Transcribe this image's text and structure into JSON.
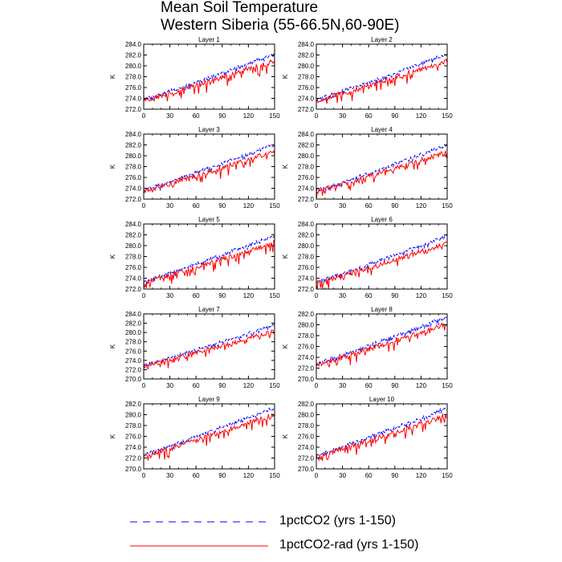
{
  "title": {
    "line1": "Mean Soil Temperature",
    "line2": "Western Siberia (55-66.5N,60-90E)"
  },
  "legend": [
    {
      "label": "1pctCO2 (yrs 1-150)",
      "color": "#0000ff",
      "dash": "dashed"
    },
    {
      "label": "1pctCO2-rad (yrs 1-150)",
      "color": "#ff0000",
      "dash": "solid"
    }
  ],
  "chart_data": [
    {
      "type": "line",
      "title": "Layer 1",
      "ylabel": "K",
      "xlim": [
        0,
        150
      ],
      "ylim": [
        272,
        284
      ],
      "xticks": [
        0,
        30,
        60,
        90,
        120,
        150
      ],
      "yticks": [
        272,
        274,
        276,
        278,
        280,
        282,
        284
      ],
      "ytick_labels": [
        "272.0",
        "274.0",
        "276.0",
        "278.0",
        "280.0",
        "282.0",
        "284.0"
      ],
      "series": [
        {
          "name": "1pctCO2 (yrs 1-150)",
          "start": 273.8,
          "end": 282.2,
          "color": "#0000ff"
        },
        {
          "name": "1pctCO2-rad (yrs 1-150)",
          "start": 273.6,
          "end": 280.9,
          "color": "#ff0000"
        }
      ]
    },
    {
      "type": "line",
      "title": "Layer 2",
      "ylabel": "K",
      "xlim": [
        0,
        150
      ],
      "ylim": [
        272,
        284
      ],
      "xticks": [
        0,
        30,
        60,
        90,
        120,
        150
      ],
      "yticks": [
        272,
        274,
        276,
        278,
        280,
        282,
        284
      ],
      "ytick_labels": [
        "272.0",
        "274.0",
        "276.0",
        "278.0",
        "280.0",
        "282.0",
        "284.0"
      ],
      "series": [
        {
          "name": "1pctCO2 (yrs 1-150)",
          "start": 273.8,
          "end": 282.2,
          "color": "#0000ff"
        },
        {
          "name": "1pctCO2-rad (yrs 1-150)",
          "start": 273.6,
          "end": 280.9,
          "color": "#ff0000"
        }
      ]
    },
    {
      "type": "line",
      "title": "Layer 3",
      "ylabel": "K",
      "xlim": [
        0,
        150
      ],
      "ylim": [
        272,
        284
      ],
      "xticks": [
        0,
        30,
        60,
        90,
        120,
        150
      ],
      "yticks": [
        272,
        274,
        276,
        278,
        280,
        282,
        284
      ],
      "ytick_labels": [
        "272.0",
        "274.0",
        "276.0",
        "278.0",
        "280.0",
        "282.0",
        "284.0"
      ],
      "series": [
        {
          "name": "1pctCO2 (yrs 1-150)",
          "start": 273.7,
          "end": 282.1,
          "color": "#0000ff"
        },
        {
          "name": "1pctCO2-rad (yrs 1-150)",
          "start": 273.5,
          "end": 280.8,
          "color": "#ff0000"
        }
      ]
    },
    {
      "type": "line",
      "title": "Layer 4",
      "ylabel": "K",
      "xlim": [
        0,
        150
      ],
      "ylim": [
        272,
        284
      ],
      "xticks": [
        0,
        30,
        60,
        90,
        120,
        150
      ],
      "yticks": [
        272,
        274,
        276,
        278,
        280,
        282,
        284
      ],
      "ytick_labels": [
        "272.0",
        "274.0",
        "276.0",
        "278.0",
        "280.0",
        "282.0",
        "284.0"
      ],
      "series": [
        {
          "name": "1pctCO2 (yrs 1-150)",
          "start": 273.6,
          "end": 282.0,
          "color": "#0000ff"
        },
        {
          "name": "1pctCO2-rad (yrs 1-150)",
          "start": 273.4,
          "end": 280.7,
          "color": "#ff0000"
        }
      ]
    },
    {
      "type": "line",
      "title": "Layer 5",
      "ylabel": "K",
      "xlim": [
        0,
        150
      ],
      "ylim": [
        272,
        284
      ],
      "xticks": [
        0,
        30,
        60,
        90,
        120,
        150
      ],
      "yticks": [
        272,
        274,
        276,
        278,
        280,
        282,
        284
      ],
      "ytick_labels": [
        "272.0",
        "274.0",
        "276.0",
        "278.0",
        "280.0",
        "282.0",
        "284.0"
      ],
      "series": [
        {
          "name": "1pctCO2 (yrs 1-150)",
          "start": 273.4,
          "end": 281.9,
          "color": "#0000ff"
        },
        {
          "name": "1pctCO2-rad (yrs 1-150)",
          "start": 273.2,
          "end": 280.6,
          "color": "#ff0000"
        }
      ]
    },
    {
      "type": "line",
      "title": "Layer 6",
      "ylabel": "K",
      "xlim": [
        0,
        150
      ],
      "ylim": [
        272,
        284
      ],
      "xticks": [
        0,
        30,
        60,
        90,
        120,
        150
      ],
      "yticks": [
        272,
        274,
        276,
        278,
        280,
        282,
        284
      ],
      "ytick_labels": [
        "272.0",
        "274.0",
        "276.0",
        "278.0",
        "280.0",
        "282.0",
        "284.0"
      ],
      "series": [
        {
          "name": "1pctCO2 (yrs 1-150)",
          "start": 273.3,
          "end": 281.8,
          "color": "#0000ff"
        },
        {
          "name": "1pctCO2-rad (yrs 1-150)",
          "start": 273.1,
          "end": 280.5,
          "color": "#ff0000"
        }
      ]
    },
    {
      "type": "line",
      "title": "Layer 7",
      "ylabel": "K",
      "xlim": [
        0,
        150
      ],
      "ylim": [
        270,
        284
      ],
      "xticks": [
        0,
        30,
        60,
        90,
        120,
        150
      ],
      "yticks": [
        270,
        272,
        274,
        276,
        278,
        280,
        282,
        284
      ],
      "ytick_labels": [
        "270.0",
        "272.0",
        "274.0",
        "276.0",
        "278.0",
        "280.0",
        "282.0",
        "284.0"
      ],
      "series": [
        {
          "name": "1pctCO2 (yrs 1-150)",
          "start": 273.0,
          "end": 281.6,
          "color": "#0000ff"
        },
        {
          "name": "1pctCO2-rad (yrs 1-150)",
          "start": 272.8,
          "end": 280.3,
          "color": "#ff0000"
        }
      ]
    },
    {
      "type": "line",
      "title": "Layer 8",
      "ylabel": "K",
      "xlim": [
        0,
        150
      ],
      "ylim": [
        270,
        282
      ],
      "xticks": [
        0,
        30,
        60,
        90,
        120,
        150
      ],
      "yticks": [
        270,
        272,
        274,
        276,
        278,
        280,
        282
      ],
      "ytick_labels": [
        "270.0",
        "272.0",
        "274.0",
        "276.0",
        "278.0",
        "280.0",
        "282.0"
      ],
      "series": [
        {
          "name": "1pctCO2 (yrs 1-150)",
          "start": 272.8,
          "end": 281.5,
          "color": "#0000ff"
        },
        {
          "name": "1pctCO2-rad (yrs 1-150)",
          "start": 272.6,
          "end": 280.2,
          "color": "#ff0000"
        }
      ]
    },
    {
      "type": "line",
      "title": "Layer 9",
      "ylabel": "K",
      "xlim": [
        0,
        150
      ],
      "ylim": [
        270,
        282
      ],
      "xticks": [
        0,
        30,
        60,
        90,
        120,
        150
      ],
      "yticks": [
        270,
        272,
        274,
        276,
        278,
        280,
        282
      ],
      "ytick_labels": [
        "270.0",
        "272.0",
        "274.0",
        "276.0",
        "278.0",
        "280.0",
        "282.0"
      ],
      "series": [
        {
          "name": "1pctCO2 (yrs 1-150)",
          "start": 272.6,
          "end": 281.3,
          "color": "#0000ff"
        },
        {
          "name": "1pctCO2-rad (yrs 1-150)",
          "start": 272.4,
          "end": 280.0,
          "color": "#ff0000"
        }
      ]
    },
    {
      "type": "line",
      "title": "Layer 10",
      "ylabel": "K",
      "xlim": [
        0,
        150
      ],
      "ylim": [
        270,
        282
      ],
      "xticks": [
        0,
        30,
        60,
        90,
        120,
        150
      ],
      "yticks": [
        270,
        272,
        274,
        276,
        278,
        280,
        282
      ],
      "ytick_labels": [
        "270.0",
        "272.0",
        "274.0",
        "276.0",
        "278.0",
        "280.0",
        "282.0"
      ],
      "series": [
        {
          "name": "1pctCO2 (yrs 1-150)",
          "start": 272.5,
          "end": 281.2,
          "color": "#0000ff"
        },
        {
          "name": "1pctCO2-rad (yrs 1-150)",
          "start": 272.3,
          "end": 279.9,
          "color": "#ff0000"
        }
      ]
    }
  ]
}
